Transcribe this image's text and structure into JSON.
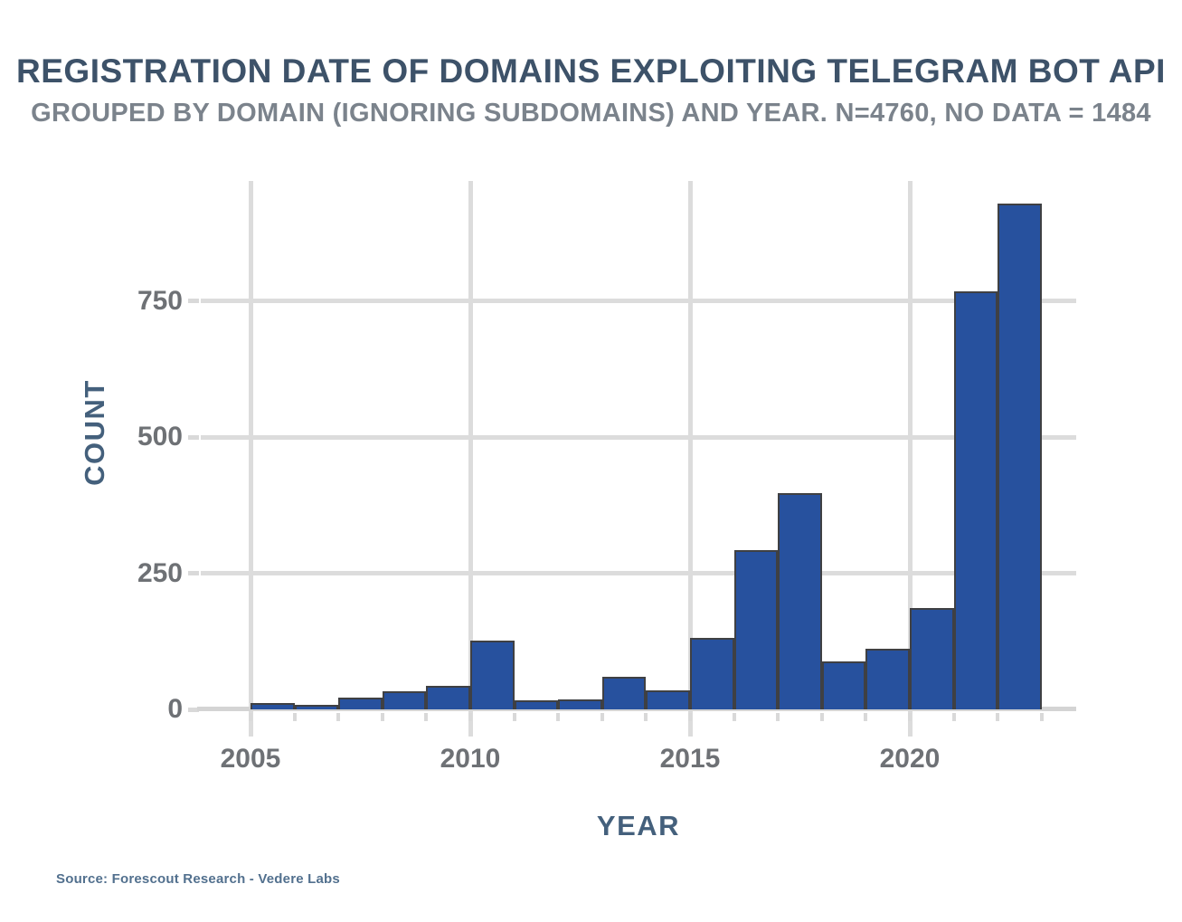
{
  "source": {
    "text": "Source: Forescout Research - Vedere Labs"
  },
  "chart_data": {
    "type": "bar",
    "histogram": true,
    "title": "REGISTRATION DATE OF DOMAINS EXPLOITING TELEGRAM BOT API",
    "subtitle": "GROUPED BY DOMAIN (IGNORING SUBDOMAINS) AND YEAR. N=4760, NO DATA = 1484",
    "xlabel": "YEAR",
    "ylabel": "COUNT",
    "categories": [
      "2005",
      "2006",
      "2007",
      "2008",
      "2009",
      "2010",
      "2011",
      "2012",
      "2013",
      "2014",
      "2015",
      "2016",
      "2017",
      "2018",
      "2019",
      "2020",
      "2021",
      "2022"
    ],
    "values": [
      11,
      9,
      21,
      33,
      44,
      126,
      16,
      19,
      60,
      35,
      131,
      292,
      397,
      88,
      111,
      186,
      768,
      929
    ],
    "ylim": [
      0,
      970
    ],
    "yticks": [
      0,
      250,
      500,
      750
    ],
    "xticks": [
      {
        "bar_index": 0,
        "label": "2005"
      },
      {
        "bar_index": 5,
        "label": "2010"
      },
      {
        "bar_index": 10,
        "label": "2015"
      },
      {
        "bar_index": 15,
        "label": "2020"
      }
    ],
    "grid": true,
    "legend": false,
    "colors": {
      "bar_fill": "#27519e",
      "bar_edge": "#3f4043",
      "gridline": "#dcdcdc",
      "axis_line": "#d4d4d4",
      "title": "#3d5269",
      "subtitle": "#7b838c",
      "axis_label": "#44607c",
      "tick_label": "#6e7175",
      "source": "#52708e"
    }
  }
}
